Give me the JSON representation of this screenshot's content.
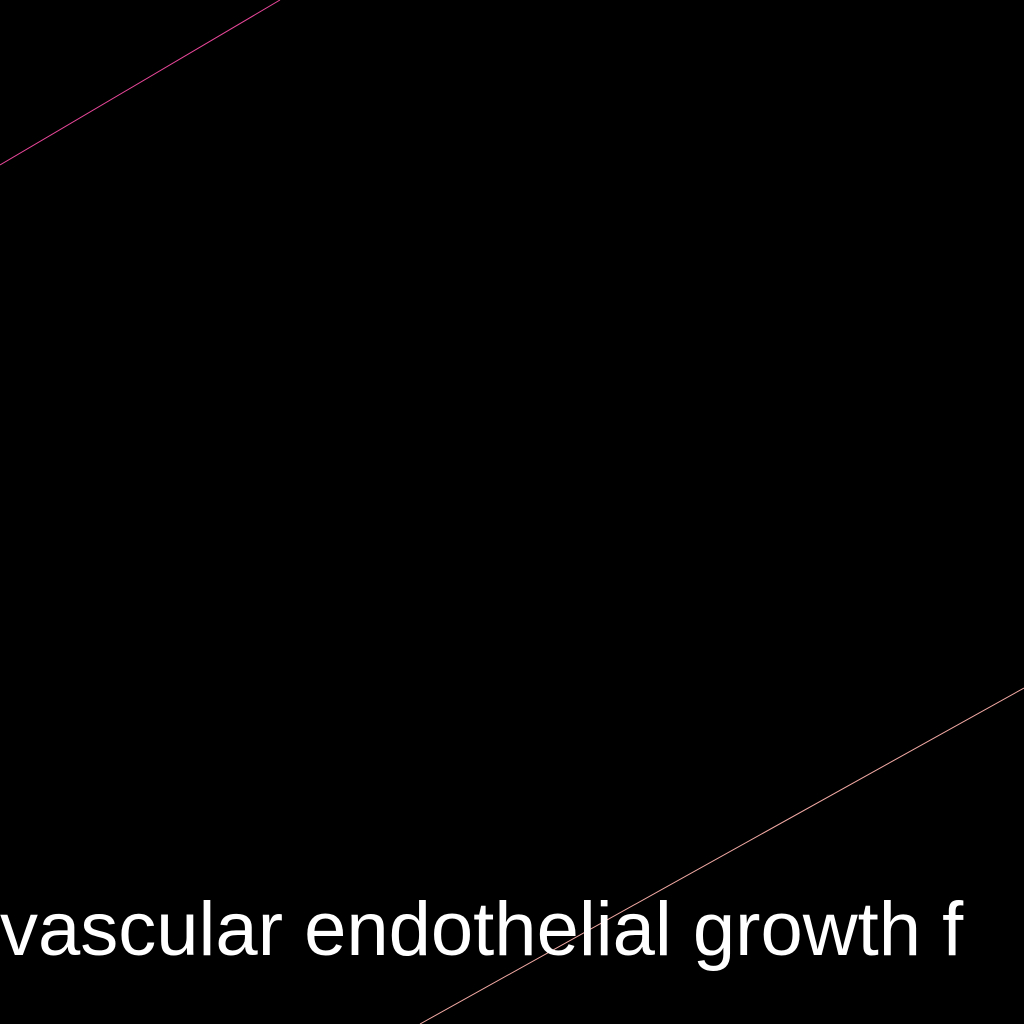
{
  "colors": {
    "background": "#000000",
    "line_top": "#e8479a",
    "line_bottom": "#f2a9a4",
    "text": "#ffffff"
  },
  "caption": {
    "text": "vascular endothelial growth f"
  }
}
